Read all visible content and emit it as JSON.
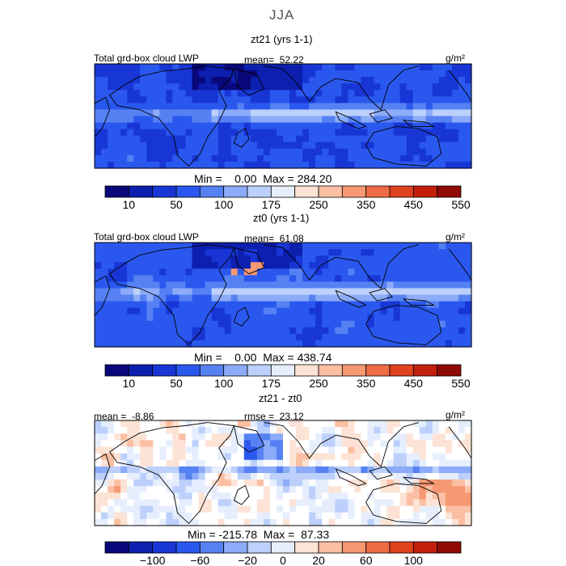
{
  "figure": {
    "season": "JJA"
  },
  "chart_data": [
    {
      "type": "heatmap",
      "title": "zt21 (yrs 1-1)",
      "variable_label": "Total grd-box cloud LWP",
      "mean_text": "mean=  52.22",
      "units_text": "g/m²",
      "minmax_text": "Min =    0.00  Max = 284.20",
      "colorbar": {
        "tick_labels": [
          "10",
          "50",
          "100",
          "175",
          "250",
          "350",
          "450",
          "550"
        ],
        "colors": [
          "#08087a",
          "#0c1fae",
          "#1836d6",
          "#2a58ee",
          "#5681f3",
          "#8cabf8",
          "#bcd0fb",
          "#e6eefe",
          "#fde3d5",
          "#fbbfa3",
          "#f69872",
          "#ef6b46",
          "#e0411f",
          "#c21f0c",
          "#8f0a04"
        ]
      }
    },
    {
      "type": "heatmap",
      "title": "zt0 (yrs 1-1)",
      "variable_label": "Total grd-box cloud LWP",
      "mean_text": "mean=  61.08",
      "units_text": "g/m²",
      "minmax_text": "Min =    0.00  Max = 438.74",
      "colorbar": {
        "tick_labels": [
          "10",
          "50",
          "100",
          "175",
          "250",
          "350",
          "450",
          "550"
        ],
        "colors": [
          "#08087a",
          "#0c1fae",
          "#1836d6",
          "#2a58ee",
          "#5681f3",
          "#8cabf8",
          "#bcd0fb",
          "#e6eefe",
          "#fde3d5",
          "#fbbfa3",
          "#f69872",
          "#ef6b46",
          "#e0411f",
          "#c21f0c",
          "#8f0a04"
        ]
      }
    },
    {
      "type": "heatmap",
      "title": "zt21 - zt0",
      "mean_text": "mean =  -8.86",
      "rmse_text": "rmse =  23.12",
      "units_text": "g/m²",
      "minmax_text": "Min = -215.78  Max =  87.33",
      "colorbar": {
        "tick_labels": [
          "-100",
          "-60",
          "-20",
          "0",
          "20",
          "60",
          "100"
        ],
        "colors": [
          "#08087a",
          "#0c1fae",
          "#1836d6",
          "#2a58ee",
          "#5681f3",
          "#8cabf8",
          "#bcd0fb",
          "#e6eefe",
          "#fde3d5",
          "#fbbfa3",
          "#f69872",
          "#ef6b46",
          "#e0411f",
          "#c21f0c",
          "#8f0a04"
        ]
      }
    }
  ]
}
